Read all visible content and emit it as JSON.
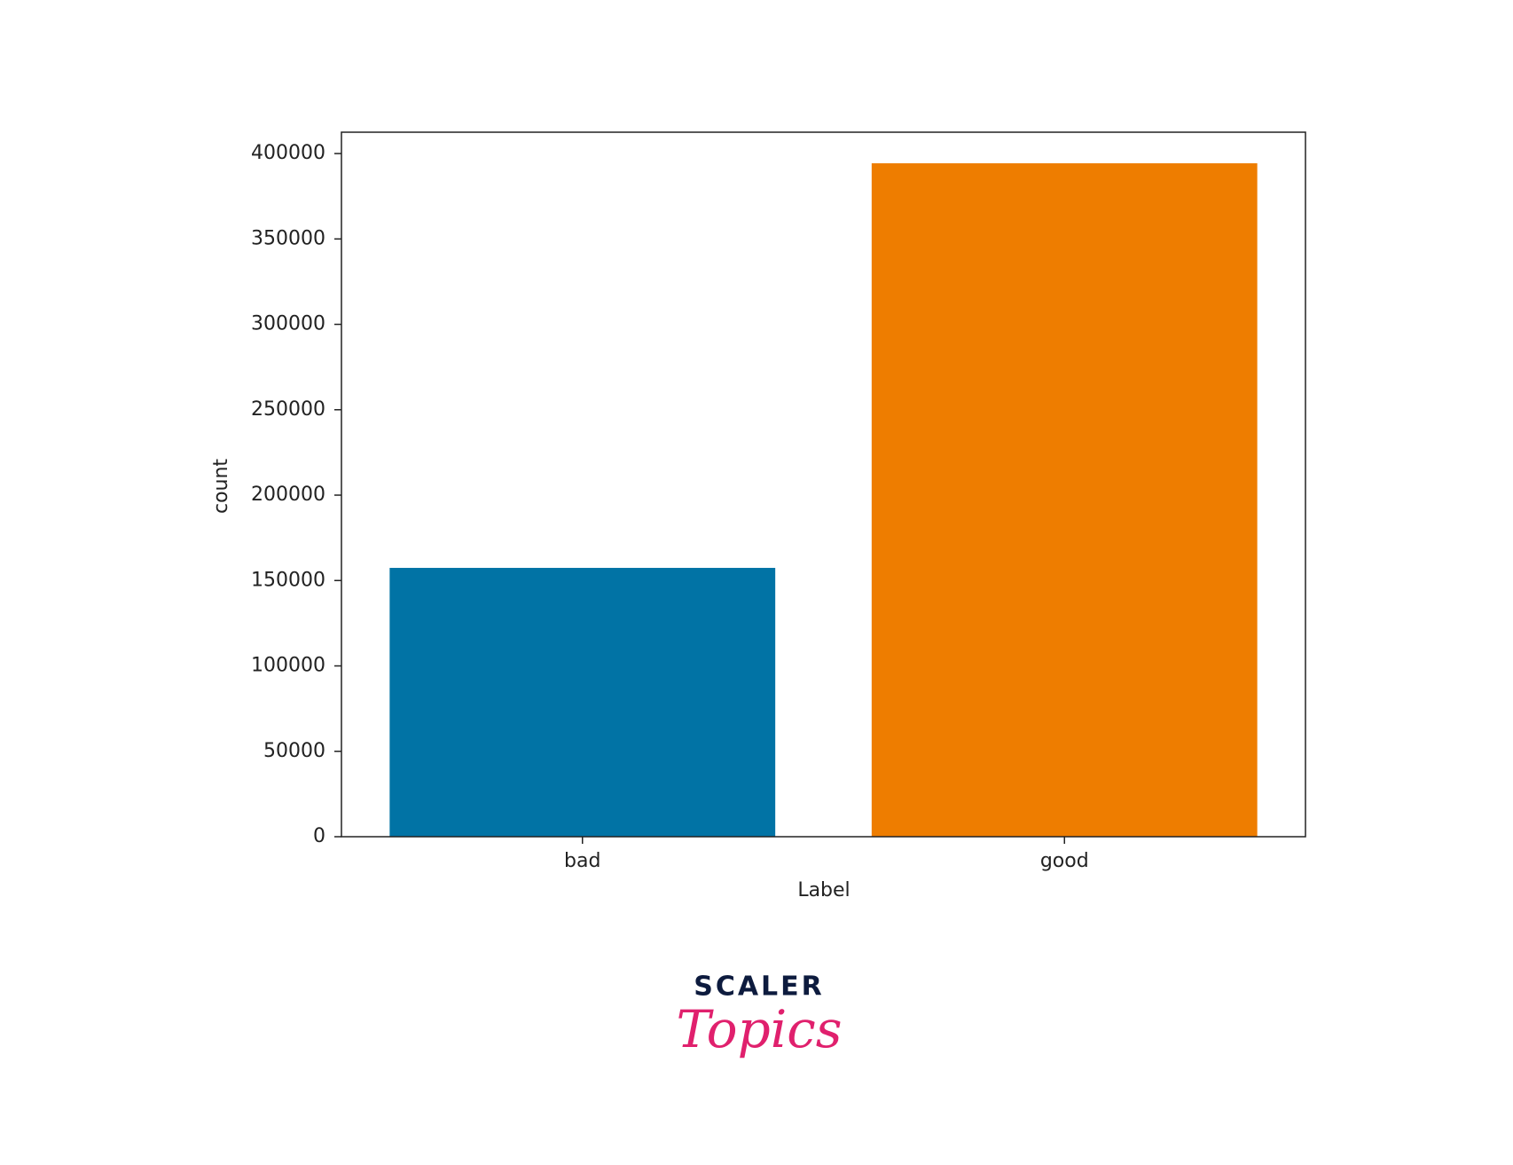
{
  "chart_data": {
    "type": "bar",
    "categories": [
      "bad",
      "good"
    ],
    "values": [
      157400,
      394300
    ],
    "colors": [
      "#0173a5",
      "#ee7d00"
    ],
    "xlabel": "Label",
    "ylabel": "count",
    "ylim": [
      0,
      412500
    ],
    "yticks": [
      0,
      50000,
      100000,
      150000,
      200000,
      250000,
      300000,
      350000,
      400000
    ],
    "grid": false
  },
  "logo": {
    "line1": "SCALER",
    "line2": "Topics"
  }
}
